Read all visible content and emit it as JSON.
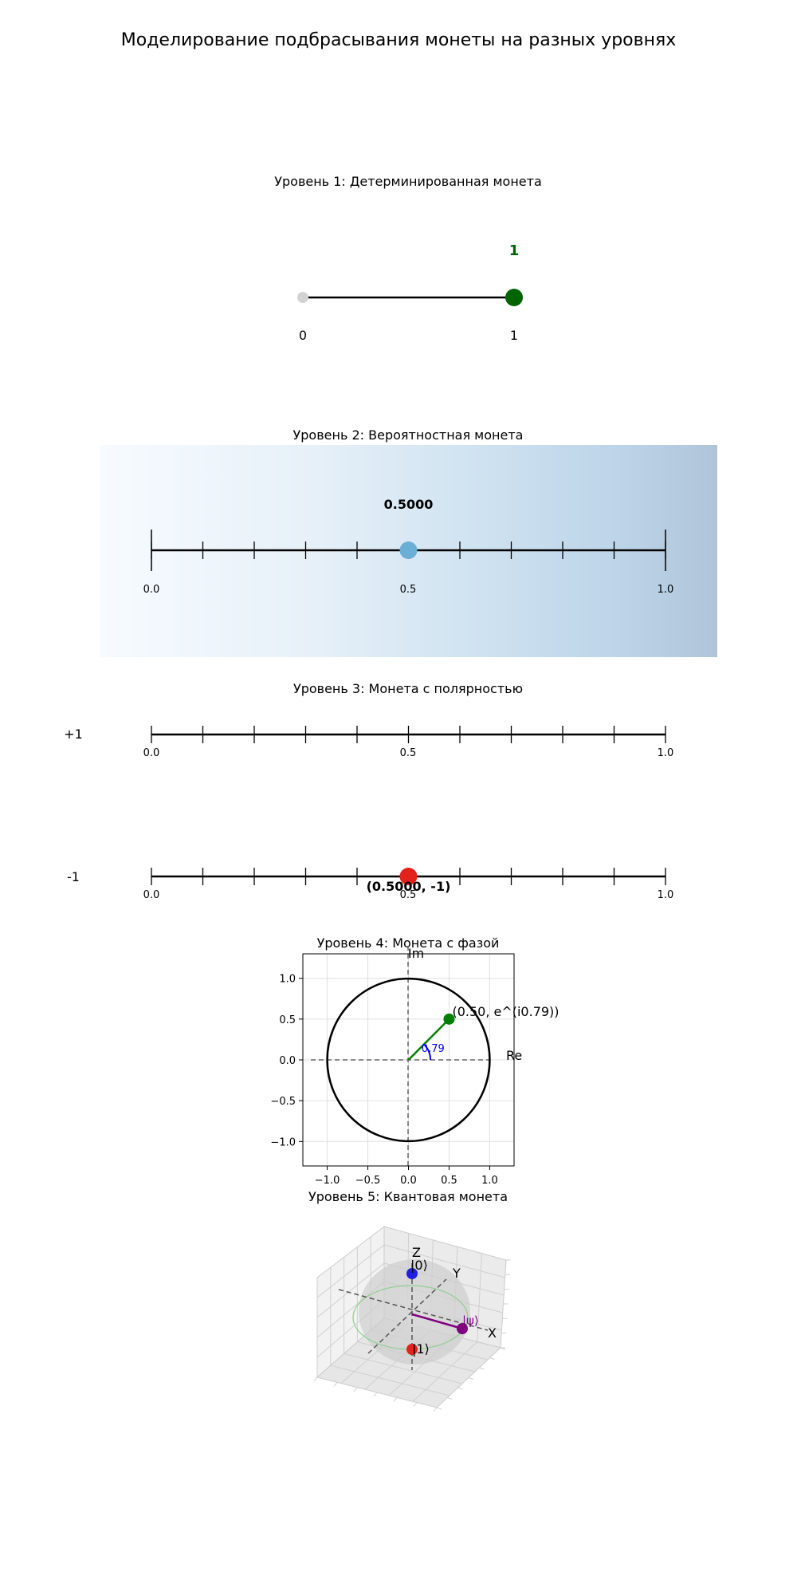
{
  "title": "Моделирование подбрасывания монеты на разных уровнях",
  "colors": {
    "green": "#006400",
    "grey": "#d3d3d3",
    "blue_dot": "#6baed6",
    "red": "#e3221c",
    "purple": "#800080",
    "qubit_blue": "#1f1fe0",
    "angle_blue": "#0000ff"
  },
  "chart_data": [
    {
      "type": "scatter",
      "title": "Уровень 1: Детерминированная монета",
      "states": [
        "0",
        "1"
      ],
      "value": 1,
      "value_label": "1"
    },
    {
      "type": "scatter",
      "title": "Уровень 2: Вероятностная монета",
      "xlim": [
        0,
        1
      ],
      "ticks": [
        "0.0",
        "0.5",
        "1.0"
      ],
      "value": 0.5,
      "value_label": "0.5000",
      "background": "gradient Blues"
    },
    {
      "type": "scatter",
      "title": "Уровень 3: Монета с полярностью",
      "polarity_labels": [
        "+1",
        "-1"
      ],
      "ticks": [
        "0.0",
        "0.5",
        "1.0"
      ],
      "value": 0.5,
      "polarity": -1,
      "point_label": "(0.5000, -1)"
    },
    {
      "type": "scatter",
      "title": "Уровень 4: Монета с фазой",
      "xlabel": "Re",
      "ylabel": "Im",
      "xlim": [
        -1.3,
        1.3
      ],
      "ylim": [
        -1.3,
        1.3
      ],
      "xticks": [
        "−1.0",
        "−0.5",
        "0.0",
        "0.5",
        "1.0"
      ],
      "yticks": [
        "−1.0",
        "−0.5",
        "0.0",
        "0.5",
        "1.0"
      ],
      "point": {
        "x": 0.5,
        "y": 0.5
      },
      "point_label": "(0.50, e^(i0.79))",
      "phase": 0.79,
      "phase_label": "0.79",
      "grid": true
    },
    {
      "type": "scatter",
      "title": "Уровень 5: Квантовая монета",
      "axis_labels": {
        "x": "X",
        "y": "Y",
        "z": "Z"
      },
      "states": {
        "zero": "|0⟩",
        "one": "|1⟩",
        "psi": "|ψ⟩"
      }
    }
  ]
}
